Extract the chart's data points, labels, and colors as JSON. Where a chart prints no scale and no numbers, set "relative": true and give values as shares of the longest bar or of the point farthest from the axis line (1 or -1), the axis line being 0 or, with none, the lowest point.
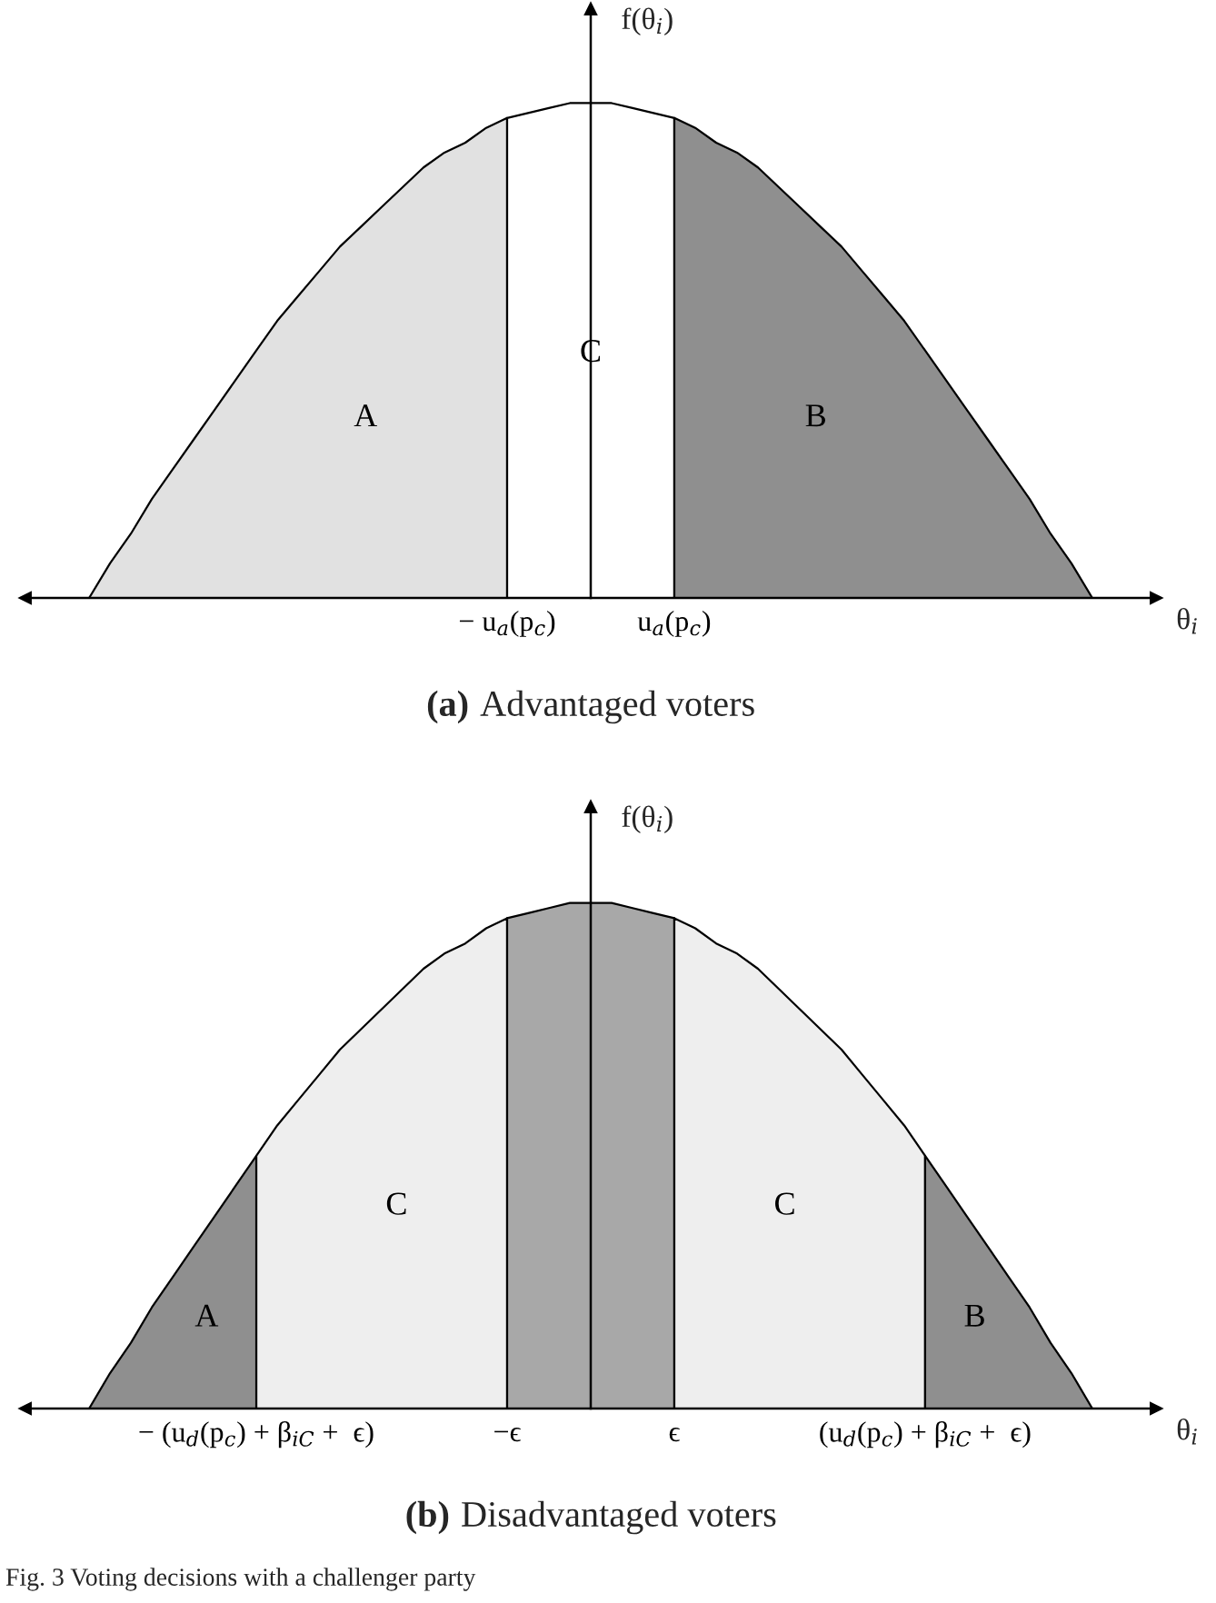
{
  "chart_data": [
    {
      "type": "area",
      "relative": true,
      "title": "(a) Advantaged voters",
      "xlabel": "θ$_{i}$",
      "ylabel": "f(θ$_{i}$)",
      "categories": [
        null,
        null,
        null,
        null,
        null,
        null,
        null,
        null,
        null,
        null,
        null,
        null,
        null,
        null,
        null,
        null,
        null,
        null,
        null,
        null,
        "− u$_{a}$(p$_{c}$)",
        null,
        null,
        null,
        null,
        null,
        null,
        null,
        "u$_{a}$(p$_{c}$)",
        null,
        null,
        null,
        null,
        null,
        null,
        null,
        null,
        null,
        null,
        null,
        null,
        null,
        null,
        null,
        null,
        null,
        null,
        null,
        null
      ],
      "series": [
        {
          "name": "A",
          "color": "#e1e1e1",
          "values": [
            0,
            0.07,
            0.13,
            0.2,
            0.26,
            0.32,
            0.38,
            0.44,
            0.5,
            0.56,
            0.61,
            0.66,
            0.71,
            0.75,
            0.79,
            0.83,
            0.87,
            0.9,
            0.92,
            0.95,
            0.97,
            null,
            null,
            null,
            null,
            null,
            null,
            null,
            null,
            null,
            null,
            null,
            null,
            null,
            null,
            null,
            null,
            null,
            null,
            null,
            null,
            null,
            null,
            null,
            null,
            null,
            null,
            null,
            null
          ]
        },
        {
          "name": "C",
          "color": "#ffffff",
          "values": [
            null,
            null,
            null,
            null,
            null,
            null,
            null,
            null,
            null,
            null,
            null,
            null,
            null,
            null,
            null,
            null,
            null,
            null,
            null,
            null,
            0.97,
            0.98,
            0.99,
            1,
            1,
            1,
            0.99,
            0.98,
            0.97,
            null,
            null,
            null,
            null,
            null,
            null,
            null,
            null,
            null,
            null,
            null,
            null,
            null,
            null,
            null,
            null,
            null,
            null,
            null,
            null
          ]
        },
        {
          "name": "B",
          "color": "#8f8f8f",
          "values": [
            null,
            null,
            null,
            null,
            null,
            null,
            null,
            null,
            null,
            null,
            null,
            null,
            null,
            null,
            null,
            null,
            null,
            null,
            null,
            null,
            null,
            null,
            null,
            null,
            null,
            null,
            null,
            null,
            0.97,
            0.95,
            0.92,
            0.9,
            0.87,
            0.83,
            0.79,
            0.75,
            0.71,
            0.66,
            0.61,
            0.56,
            0.5,
            0.44,
            0.38,
            0.32,
            0.26,
            0.2,
            0.13,
            0.07,
            0
          ]
        }
      ]
    },
    {
      "type": "area",
      "relative": true,
      "title": "(b) Disadvantaged voters",
      "xlabel": "θ$_{i}$",
      "ylabel": "f(θ$_{i}$)",
      "categories": [
        null,
        null,
        null,
        null,
        null,
        null,
        null,
        null,
        "− (u$_{d}$(p$_{c}$) + β$_{iC}$ +  ϵ)",
        null,
        null,
        null,
        null,
        null,
        null,
        null,
        null,
        null,
        null,
        null,
        "−ϵ",
        null,
        null,
        null,
        null,
        null,
        null,
        null,
        "ϵ",
        null,
        null,
        null,
        null,
        null,
        null,
        null,
        null,
        null,
        null,
        null,
        "(u$_{d}$(p$_{c}$) + β$_{iC}$ +  ϵ)",
        null,
        null,
        null,
        null,
        null,
        null,
        null,
        null
      ],
      "series": [
        {
          "name": "A",
          "color": "#8f8f8f",
          "values": [
            0,
            0.07,
            0.13,
            0.2,
            0.26,
            0.32,
            0.38,
            0.44,
            0.5,
            null,
            null,
            null,
            null,
            null,
            null,
            null,
            null,
            null,
            null,
            null,
            null,
            null,
            null,
            null,
            null,
            null,
            null,
            null,
            null,
            null,
            null,
            null,
            null,
            null,
            null,
            null,
            null,
            null,
            null,
            null,
            null,
            null,
            null,
            null,
            null,
            null,
            null,
            null,
            null
          ]
        },
        {
          "name": "C",
          "color": "#eeeeee",
          "values": [
            null,
            null,
            null,
            null,
            null,
            null,
            null,
            null,
            0.5,
            0.56,
            0.61,
            0.66,
            0.71,
            0.75,
            0.79,
            0.83,
            0.87,
            0.9,
            0.92,
            0.95,
            0.97,
            null,
            null,
            null,
            null,
            null,
            null,
            null,
            null,
            null,
            null,
            null,
            null,
            null,
            null,
            null,
            null,
            null,
            null,
            null,
            null,
            null,
            null,
            null,
            null,
            null,
            null,
            null,
            null
          ]
        },
        {
          "color": "#a8a8a8",
          "values": [
            null,
            null,
            null,
            null,
            null,
            null,
            null,
            null,
            null,
            null,
            null,
            null,
            null,
            null,
            null,
            null,
            null,
            null,
            null,
            null,
            0.97,
            0.98,
            0.99,
            1,
            1,
            1,
            0.99,
            0.98,
            0.97,
            null,
            null,
            null,
            null,
            null,
            null,
            null,
            null,
            null,
            null,
            null,
            null,
            null,
            null,
            null,
            null,
            null,
            null,
            null,
            null
          ]
        },
        {
          "name": "C",
          "color": "#eeeeee",
          "values": [
            null,
            null,
            null,
            null,
            null,
            null,
            null,
            null,
            null,
            null,
            null,
            null,
            null,
            null,
            null,
            null,
            null,
            null,
            null,
            null,
            null,
            null,
            null,
            null,
            null,
            null,
            null,
            null,
            0.97,
            0.95,
            0.92,
            0.9,
            0.87,
            0.83,
            0.79,
            0.75,
            0.71,
            0.66,
            0.61,
            0.56,
            0.5,
            null,
            null,
            null,
            null,
            null,
            null,
            null,
            null
          ]
        },
        {
          "name": "B",
          "color": "#8f8f8f",
          "values": [
            null,
            null,
            null,
            null,
            null,
            null,
            null,
            null,
            null,
            null,
            null,
            null,
            null,
            null,
            null,
            null,
            null,
            null,
            null,
            null,
            null,
            null,
            null,
            null,
            null,
            null,
            null,
            null,
            null,
            null,
            null,
            null,
            null,
            null,
            null,
            null,
            null,
            null,
            null,
            null,
            0.5,
            0.44,
            0.38,
            0.32,
            0.26,
            0.2,
            0.13,
            0.07,
            0
          ]
        }
      ],
      "annotations": [
        "Fig. 3 Voting decisions with a challenger party"
      ]
    }
  ]
}
